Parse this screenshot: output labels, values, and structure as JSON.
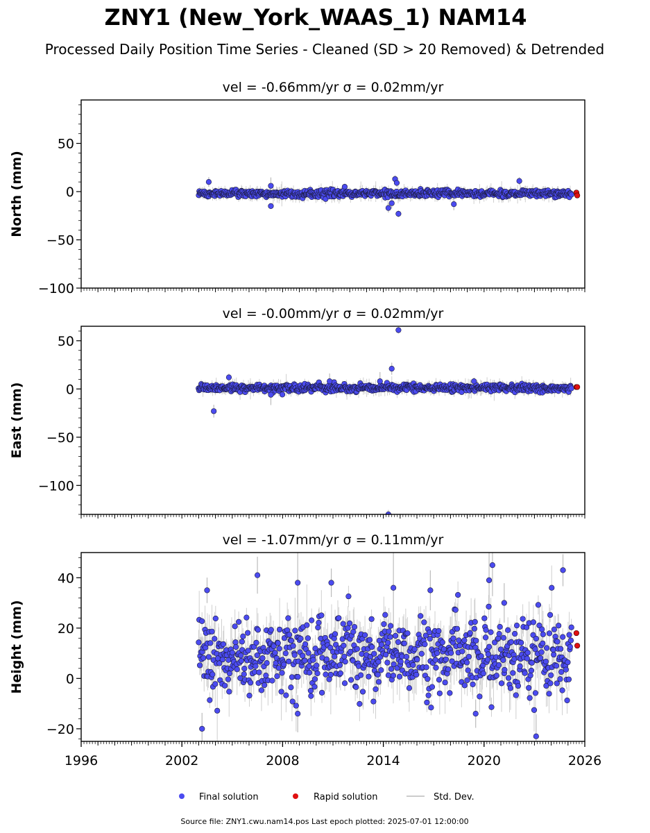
{
  "title": "ZNY1 (New_York_WAAS_1) NAM14",
  "subtitle": "Processed Daily Position Time Series - Cleaned (SD > 20 Removed) & Detrended",
  "source_note": "Source file: ZNY1.cwu.nam14.pos  Last epoch plotted: 2025-07-01 12:00:00",
  "colors": {
    "final": "#4b4bf0",
    "rapid": "#e01010",
    "stddev": "#bbbbbb",
    "edge": "#1a1a3a"
  },
  "chart_data": [
    {
      "type": "scatter",
      "title": "vel = -0.66mm/yr   σ = 0.02mm/yr",
      "ylabel": "North (mm)",
      "xlim": [
        1996,
        2026
      ],
      "ylim": [
        -100,
        95
      ],
      "yticks": [
        -100,
        -50,
        0,
        50
      ],
      "ytick_labels": [
        "−100",
        "−50",
        "0",
        "50"
      ],
      "xtick_labels": [],
      "data_start": 2003.0,
      "data_end": 2025.2,
      "trend_y": -2,
      "noise_sd": 1.7,
      "err_sd": 3,
      "outliers": [
        {
          "x": 2003.6,
          "y": 10
        },
        {
          "x": 2007.3,
          "y": 6
        },
        {
          "x": 2007.3,
          "y": -15
        },
        {
          "x": 2014.3,
          "y": -17
        },
        {
          "x": 2014.7,
          "y": 13
        },
        {
          "x": 2014.8,
          "y": 9
        },
        {
          "x": 2014.9,
          "y": -23
        },
        {
          "x": 2018.2,
          "y": -13
        },
        {
          "x": 2022.1,
          "y": 11
        },
        {
          "x": 2011.7,
          "y": 5
        },
        {
          "x": 2014.5,
          "y": -12
        }
      ],
      "rapid": [
        {
          "x": 2025.5,
          "y": -1
        },
        {
          "x": 2025.55,
          "y": -4
        }
      ]
    },
    {
      "type": "scatter",
      "title": "vel = -0.00mm/yr   σ = 0.02mm/yr",
      "ylabel": "East (mm)",
      "xlim": [
        1996,
        2026
      ],
      "ylim": [
        -130,
        65
      ],
      "yticks": [
        -100,
        -50,
        0,
        50
      ],
      "ytick_labels": [
        "−100",
        "−50",
        "0",
        "50"
      ],
      "xtick_labels": [],
      "data_start": 2003.0,
      "data_end": 2025.2,
      "trend_y": 1,
      "noise_sd": 1.8,
      "err_sd": 3,
      "outliers": [
        {
          "x": 2003.9,
          "y": -23
        },
        {
          "x": 2004.8,
          "y": 12
        },
        {
          "x": 2007.3,
          "y": -6
        },
        {
          "x": 2014.5,
          "y": 21
        },
        {
          "x": 2014.9,
          "y": 61
        },
        {
          "x": 2014.3,
          "y": -130
        },
        {
          "x": 2019.4,
          "y": 8
        },
        {
          "x": 2010.8,
          "y": 8
        },
        {
          "x": 2013.8,
          "y": 8
        }
      ],
      "rapid": [
        {
          "x": 2025.5,
          "y": 2
        },
        {
          "x": 2025.55,
          "y": 2
        }
      ]
    },
    {
      "type": "scatter",
      "title": "vel = -1.07mm/yr   σ = 0.11mm/yr",
      "ylabel": "Height (mm)",
      "xlim": [
        1996,
        2026
      ],
      "ylim": [
        -25,
        50
      ],
      "yticks": [
        -20,
        0,
        20,
        40
      ],
      "ytick_labels": [
        "−20",
        "0",
        "20",
        "40"
      ],
      "xtick_labels": [
        "1996",
        "2002",
        "2008",
        "2014",
        "2020",
        "2026"
      ],
      "xticks": [
        1996,
        2002,
        2008,
        2014,
        2020,
        2026
      ],
      "data_start": 2003.0,
      "data_end": 2025.2,
      "trend_y": 9,
      "noise_sd": 7,
      "err_sd": 5,
      "outliers": [
        {
          "x": 2003.5,
          "y": 35
        },
        {
          "x": 2003.2,
          "y": -20
        },
        {
          "x": 2006.5,
          "y": 41
        },
        {
          "x": 2008.9,
          "y": 38
        },
        {
          "x": 2010.9,
          "y": 38
        },
        {
          "x": 2008.9,
          "y": -14
        },
        {
          "x": 2014.6,
          "y": 36
        },
        {
          "x": 2016.8,
          "y": 35
        },
        {
          "x": 2020.5,
          "y": 45
        },
        {
          "x": 2020.3,
          "y": 39
        },
        {
          "x": 2024.7,
          "y": 43
        },
        {
          "x": 2023.1,
          "y": -23
        },
        {
          "x": 2019.5,
          "y": -14
        },
        {
          "x": 2021.2,
          "y": 30
        }
      ],
      "rapid": [
        {
          "x": 2025.5,
          "y": 18
        },
        {
          "x": 2025.55,
          "y": 13
        }
      ]
    }
  ],
  "legend": {
    "final_label": "Final solution",
    "rapid_label": "Rapid solution",
    "stddev_label": "Std. Dev."
  }
}
